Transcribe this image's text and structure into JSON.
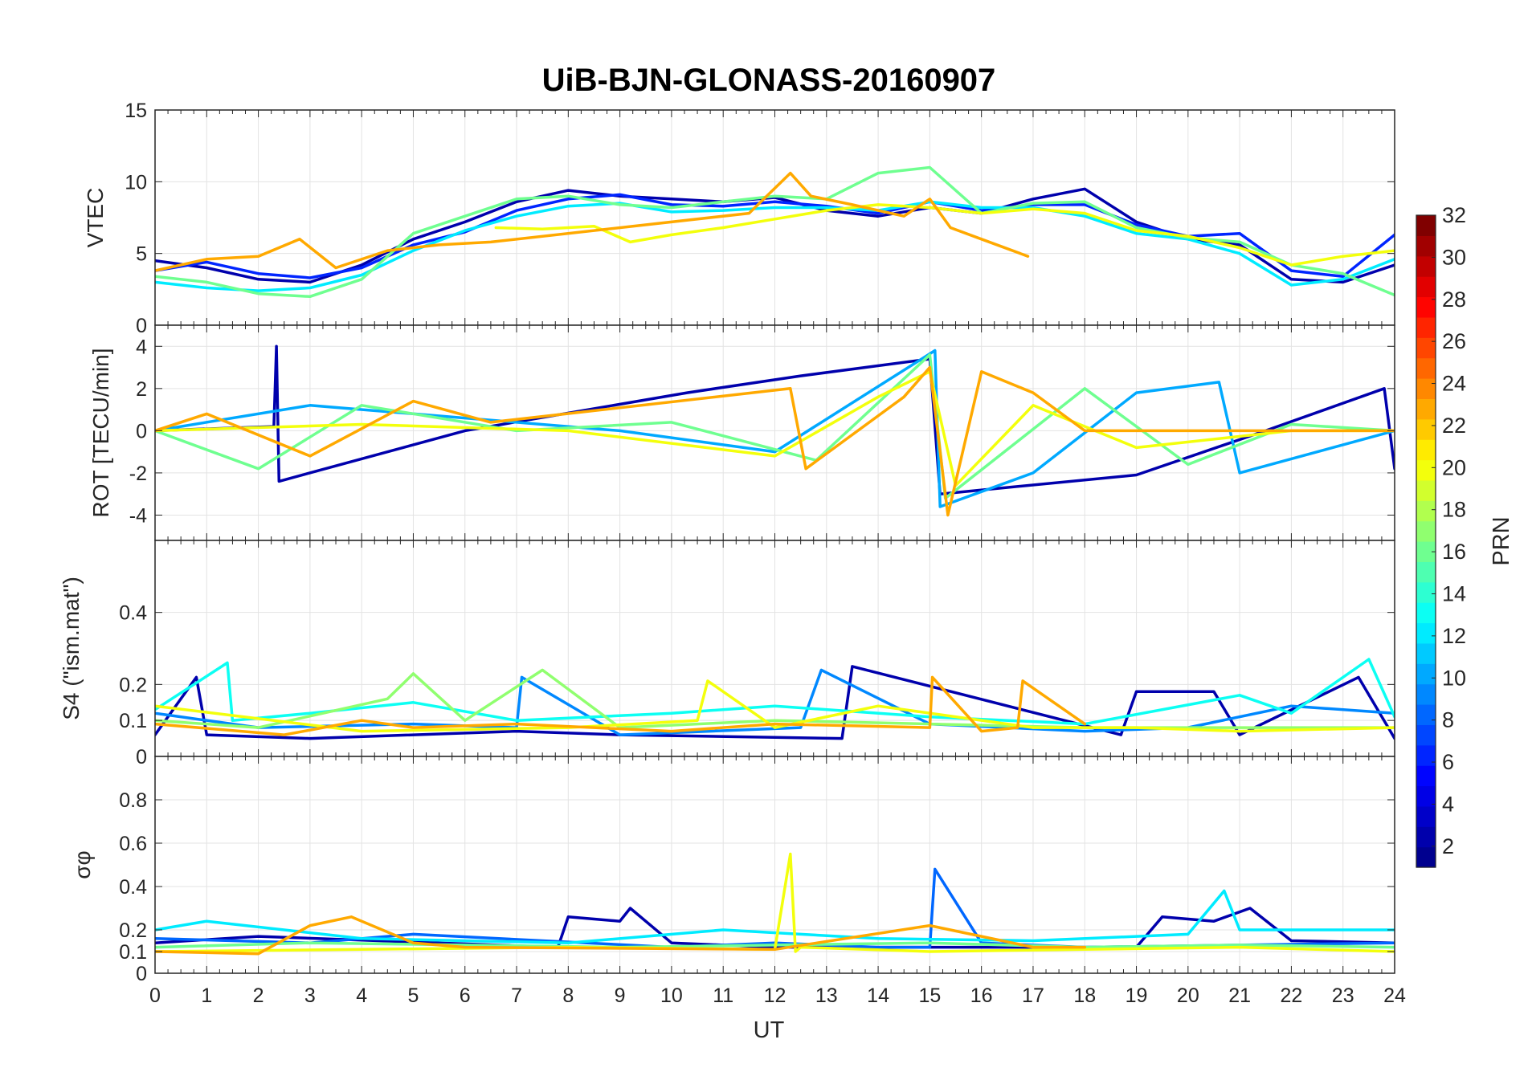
{
  "chart_data": {
    "type": "line",
    "title": "UiB-BJN-GLONASS-20160907",
    "x": {
      "label": "UT",
      "lim": [
        0,
        24
      ],
      "ticks": [
        0,
        1,
        2,
        3,
        4,
        5,
        6,
        7,
        8,
        9,
        10,
        11,
        12,
        13,
        14,
        15,
        16,
        17,
        18,
        19,
        20,
        21,
        22,
        23,
        24
      ],
      "tick_labels": [
        "0",
        "1",
        "2",
        "3",
        "4",
        "5",
        "6",
        "7",
        "8",
        "9",
        "10",
        "11",
        "12",
        "13",
        "14",
        "15",
        "16",
        "17",
        "18",
        "19",
        "20",
        "21",
        "22",
        "23",
        "24"
      ]
    },
    "panels": [
      {
        "id": "vtec",
        "ylabel": "VTEC",
        "ylim": [
          0,
          15
        ],
        "yticks": [
          0,
          5,
          10,
          15
        ],
        "ytick_labels": [
          "0",
          "5",
          "10",
          "15"
        ],
        "series": [
          {
            "prn": 2,
            "x": [
              0,
              1,
              2,
              3,
              4,
              5,
              6,
              7,
              8,
              9,
              10,
              11,
              12,
              13,
              14,
              15,
              16,
              17,
              18,
              19,
              20,
              21,
              22,
              23,
              24
            ],
            "y": [
              4.5,
              4.0,
              3.2,
              3.0,
              4.2,
              6.0,
              7.2,
              8.6,
              9.4,
              9.0,
              8.8,
              8.6,
              8.9,
              8.0,
              7.6,
              8.2,
              7.8,
              8.8,
              9.5,
              7.2,
              6.0,
              5.6,
              3.2,
              3.0,
              4.2
            ]
          },
          {
            "prn": 6,
            "x": [
              0,
              1,
              2,
              3,
              4,
              5,
              6,
              7,
              8,
              9,
              10,
              11,
              12,
              13,
              14,
              15,
              16,
              17,
              18,
              19,
              20,
              21,
              22,
              23,
              24
            ],
            "y": [
              3.8,
              4.4,
              3.6,
              3.3,
              4.0,
              5.6,
              6.5,
              8.0,
              8.8,
              9.1,
              8.4,
              8.3,
              8.6,
              8.3,
              7.8,
              8.6,
              8.0,
              8.4,
              8.4,
              7.0,
              6.2,
              6.4,
              3.8,
              3.4,
              6.3
            ]
          },
          {
            "prn": 12,
            "x": [
              0,
              1,
              2,
              3,
              4,
              5,
              6,
              7,
              8,
              9,
              10,
              11,
              12,
              13,
              14,
              15,
              16,
              17,
              18,
              19,
              20,
              21,
              22,
              23,
              24
            ],
            "y": [
              3.0,
              2.6,
              2.4,
              2.6,
              3.5,
              5.2,
              6.6,
              7.6,
              8.3,
              8.5,
              7.9,
              8.0,
              8.2,
              8.2,
              8.0,
              8.6,
              8.2,
              8.2,
              7.6,
              6.4,
              6.0,
              5.0,
              2.8,
              3.2,
              4.6
            ]
          },
          {
            "prn": 16,
            "x": [
              0,
              1,
              2,
              3,
              4,
              5,
              6,
              7,
              8,
              9,
              10,
              11,
              12,
              13,
              14,
              15,
              16,
              17,
              18,
              19,
              20,
              21,
              22,
              23,
              24
            ],
            "y": [
              3.4,
              3.0,
              2.2,
              2.0,
              3.2,
              6.4,
              7.6,
              8.8,
              9.0,
              8.4,
              8.2,
              8.6,
              9.0,
              8.8,
              10.6,
              11.0,
              7.8,
              8.5,
              8.6,
              6.8,
              6.1,
              5.8,
              4.2,
              3.6,
              2.1
            ]
          },
          {
            "prn": 20,
            "x": [
              6.6,
              7.5,
              8.5,
              9.2,
              10.0,
              11.0,
              12.0,
              13.0,
              14.0,
              15.0,
              16.0,
              17.0,
              18.0,
              19.0,
              20.0,
              21.0,
              22.0,
              23.0,
              24.0
            ],
            "y": [
              6.8,
              6.7,
              6.9,
              5.8,
              6.3,
              6.8,
              7.4,
              8.0,
              8.4,
              8.2,
              7.8,
              8.1,
              7.8,
              6.6,
              6.2,
              5.4,
              4.2,
              4.8,
              5.2
            ]
          },
          {
            "prn": 23,
            "x": [
              0,
              1,
              2,
              2.8,
              3.5,
              4.5,
              5.5,
              6.5,
              11.5,
              12.3,
              12.7,
              13.5,
              14.5,
              15.0,
              15.4,
              16.0,
              16.9
            ],
            "y": [
              3.8,
              4.6,
              4.8,
              6.0,
              4.0,
              5.2,
              5.6,
              5.8,
              7.8,
              10.6,
              9.0,
              8.4,
              7.6,
              8.8,
              6.8,
              6.0,
              4.8
            ]
          }
        ]
      },
      {
        "id": "rot",
        "ylabel": "ROT [TECU/min]",
        "ylim": [
          -5.2,
          5
        ],
        "yticks": [
          -4,
          -2,
          0,
          2,
          4
        ],
        "ytick_labels": [
          "-4",
          "-2",
          "0",
          "2",
          "4"
        ],
        "series": [
          {
            "prn": 2,
            "x": [
              0,
              2.3,
              2.35,
              2.4,
              6,
              10.3,
              12.5,
              15.0,
              15.2,
              19,
              21.5,
              23.8,
              24
            ],
            "y": [
              0,
              0.2,
              4.0,
              -2.4,
              0,
              1.8,
              2.6,
              3.4,
              -3.0,
              -2.1,
              0,
              2.0,
              -1.8
            ]
          },
          {
            "prn": 10,
            "x": [
              0,
              3.0,
              6.0,
              9.0,
              12.0,
              15.1,
              15.2,
              17.0,
              19.0,
              20.6,
              21.0,
              24.0
            ],
            "y": [
              0,
              1.2,
              0.6,
              0,
              -1.0,
              3.8,
              -3.6,
              -2.0,
              1.8,
              2.3,
              -2.0,
              0
            ]
          },
          {
            "prn": 16,
            "x": [
              0,
              2.0,
              4.0,
              7.0,
              10.0,
              12.8,
              15.0,
              15.3,
              18.0,
              20.0,
              22.0,
              24.0
            ],
            "y": [
              0,
              -1.8,
              1.2,
              0,
              0.4,
              -1.4,
              3.6,
              -3.2,
              2.0,
              -1.6,
              0.3,
              0
            ]
          },
          {
            "prn": 20,
            "x": [
              0,
              4.0,
              8.0,
              12.0,
              14.0,
              15.0,
              15.5,
              17.0,
              19.0,
              22.0,
              24.0
            ],
            "y": [
              0,
              0.3,
              0,
              -1.2,
              1.6,
              2.8,
              -2.6,
              1.2,
              -0.8,
              0,
              0
            ]
          },
          {
            "prn": 23,
            "x": [
              0,
              1.0,
              3.0,
              5.0,
              6.5,
              12.3,
              12.6,
              14.5,
              15.0,
              15.35,
              16.0,
              17.0,
              18.0,
              24.0
            ],
            "y": [
              0,
              0.8,
              -1.2,
              1.4,
              0.4,
              2.0,
              -1.8,
              1.6,
              3.0,
              -4.0,
              2.8,
              1.8,
              0,
              0
            ]
          }
        ]
      },
      {
        "id": "s4",
        "ylabel": "S4 (\"ism.mat\")",
        "ylim": [
          0,
          0.6
        ],
        "yticks": [
          0,
          0.1,
          0.2,
          0.4
        ],
        "ytick_labels": [
          "0",
          "0.1",
          "0.2",
          "0.4"
        ],
        "series": [
          {
            "prn": 2,
            "x": [
              0,
              0.8,
              1.0,
              3.0,
              7.0,
              9.0,
              13.3,
              13.5,
              18.7,
              19.0,
              20.5,
              21.0,
              23.3,
              24.0
            ],
            "y": [
              0.06,
              0.22,
              0.06,
              0.05,
              0.07,
              0.06,
              0.05,
              0.25,
              0.06,
              0.18,
              0.18,
              0.06,
              0.22,
              0.05
            ]
          },
          {
            "prn": 9,
            "x": [
              0,
              2.0,
              5.0,
              7.0,
              7.1,
              9.0,
              12.5,
              12.9,
              15.0,
              18.0,
              20.0,
              22.0,
              24.0
            ],
            "y": [
              0.12,
              0.08,
              0.09,
              0.08,
              0.22,
              0.06,
              0.08,
              0.24,
              0.09,
              0.07,
              0.08,
              0.14,
              0.12
            ]
          },
          {
            "prn": 13,
            "x": [
              0,
              1.4,
              1.5,
              3.0,
              5.0,
              7.0,
              10.0,
              12.0,
              15.0,
              18.0,
              21.0,
              22.0,
              23.5,
              24.0
            ],
            "y": [
              0.13,
              0.26,
              0.1,
              0.12,
              0.15,
              0.1,
              0.12,
              0.14,
              0.11,
              0.09,
              0.17,
              0.12,
              0.27,
              0.11
            ]
          },
          {
            "prn": 17,
            "x": [
              0,
              2.0,
              4.5,
              5.0,
              6.0,
              7.5,
              9.0,
              12.0,
              15.0,
              18.0,
              20.0,
              24.0
            ],
            "y": [
              0.1,
              0.08,
              0.16,
              0.23,
              0.1,
              0.24,
              0.08,
              0.1,
              0.09,
              0.08,
              0.08,
              0.08
            ]
          },
          {
            "prn": 20,
            "x": [
              0,
              4.0,
              8.0,
              10.5,
              10.7,
              12.0,
              14.0,
              17.0,
              19.0,
              21.0,
              24.0
            ],
            "y": [
              0.14,
              0.07,
              0.08,
              0.1,
              0.21,
              0.08,
              0.14,
              0.08,
              0.08,
              0.07,
              0.08
            ]
          },
          {
            "prn": 23,
            "x": [
              0,
              2.5,
              4.0,
              5.0,
              7.0,
              10.0,
              12.0,
              15.0,
              15.05,
              16.0,
              16.7,
              16.8,
              18.0
            ],
            "y": [
              0.09,
              0.06,
              0.1,
              0.08,
              0.09,
              0.07,
              0.09,
              0.08,
              0.22,
              0.07,
              0.08,
              0.21,
              0.09
            ]
          }
        ]
      },
      {
        "id": "sigma_phi",
        "ylabel": "σφ",
        "ylim": [
          0,
          1
        ],
        "yticks": [
          0,
          0.1,
          0.2,
          0.4,
          0.6,
          0.8
        ],
        "ytick_labels": [
          "0",
          "0.1",
          "0.2",
          "0.4",
          "0.6",
          "0.8"
        ],
        "series": [
          {
            "prn": 2,
            "x": [
              0,
              2.0,
              7.8,
              8.0,
              9.0,
              9.2,
              10.0,
              12.0,
              19.0,
              19.5,
              20.5,
              21.2,
              22.0,
              24.0
            ],
            "y": [
              0.14,
              0.17,
              0.12,
              0.26,
              0.24,
              0.3,
              0.14,
              0.12,
              0.12,
              0.26,
              0.24,
              0.3,
              0.15,
              0.14
            ]
          },
          {
            "prn": 8,
            "x": [
              0,
              3.0,
              5.0,
              10.0,
              12.0,
              14.0,
              15.0,
              15.1,
              16.0,
              18.0,
              21.0,
              24.0
            ],
            "y": [
              0.16,
              0.14,
              0.18,
              0.12,
              0.14,
              0.12,
              0.12,
              0.48,
              0.14,
              0.12,
              0.13,
              0.14
            ]
          },
          {
            "prn": 12,
            "x": [
              0,
              1.0,
              4.0,
              8.0,
              11.0,
              14.0,
              17.0,
              20.0,
              20.7,
              21.0,
              24.0
            ],
            "y": [
              0.2,
              0.24,
              0.16,
              0.14,
              0.2,
              0.16,
              0.15,
              0.18,
              0.38,
              0.2,
              0.2
            ]
          },
          {
            "prn": 16,
            "x": [
              0,
              3.0,
              6.0,
              9.0,
              12.0,
              15.0,
              18.0,
              21.0,
              24.0
            ],
            "y": [
              0.12,
              0.14,
              0.13,
              0.12,
              0.13,
              0.14,
              0.12,
              0.13,
              0.12
            ]
          },
          {
            "prn": 20,
            "x": [
              0,
              4.0,
              8.0,
              12.0,
              12.3,
              12.4,
              12.5,
              15.0,
              18.0,
              21.0,
              24.0
            ],
            "y": [
              0.1,
              0.11,
              0.12,
              0.11,
              0.55,
              0.1,
              0.12,
              0.1,
              0.11,
              0.12,
              0.1
            ]
          },
          {
            "prn": 23,
            "x": [
              0,
              2.0,
              3.0,
              3.8,
              5.0,
              6.0,
              12.0,
              15.0,
              17.0,
              18.0
            ],
            "y": [
              0.1,
              0.09,
              0.22,
              0.26,
              0.14,
              0.12,
              0.11,
              0.22,
              0.12,
              0.12
            ]
          }
        ]
      }
    ],
    "colorbar": {
      "label": "PRN",
      "lim": [
        1,
        32
      ],
      "ticks": [
        2,
        4,
        6,
        8,
        10,
        12,
        14,
        16,
        18,
        20,
        22,
        24,
        26,
        28,
        30,
        32
      ],
      "tick_labels": [
        "2",
        "4",
        "6",
        "8",
        "10",
        "12",
        "14",
        "16",
        "18",
        "20",
        "22",
        "24",
        "26",
        "28",
        "30",
        "32"
      ],
      "colormap": "jet",
      "jet_stops": [
        "#00008f",
        "#0000ff",
        "#0080ff",
        "#00ffff",
        "#80ff80",
        "#ffff00",
        "#ff8000",
        "#ff0000",
        "#800000"
      ]
    },
    "grid": true,
    "background": "#ffffff"
  }
}
